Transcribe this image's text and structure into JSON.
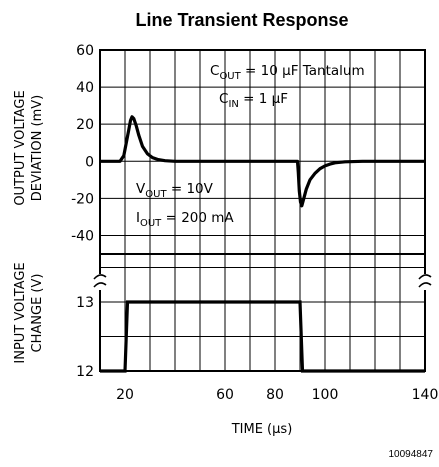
{
  "chart_data": [
    {
      "type": "line",
      "title": "Line Transient Response",
      "ylabel_lines": [
        "OUTPUT VOLTAGE",
        "DEVIATION (mV)"
      ],
      "ylim": [
        -50,
        60
      ],
      "yticks": [
        60,
        40,
        20,
        0,
        -20,
        -40
      ],
      "xlim": [
        10,
        140
      ],
      "grid": true,
      "annotations": [
        {
          "pre": "C",
          "sub": "OUT",
          "post": " = 10 ",
          "mu": "μ",
          "post2": "F Tantalum"
        },
        {
          "pre": "C",
          "sub": "IN",
          "post": " = 1 ",
          "mu": "μ",
          "post2": "F"
        },
        {
          "pre": "V",
          "sub": "OUT",
          "post": " = 10V"
        },
        {
          "pre": "I",
          "sub": "OUT",
          "post": " = 200 mA"
        }
      ],
      "series": [
        {
          "x": [
            10,
            18,
            19.5,
            20.5,
            21.5,
            22.2,
            22.8,
            23.5,
            24.5,
            25.5,
            27,
            29,
            31,
            33,
            36,
            40,
            50,
            70,
            89,
            89.3,
            89.7,
            90.2,
            90.7,
            91.5,
            92.5,
            94,
            96,
            98,
            100,
            102,
            104,
            108,
            115,
            140
          ],
          "y": [
            0,
            0,
            3,
            10,
            17,
            22,
            24,
            23,
            19,
            14,
            8,
            4,
            2,
            1,
            0.3,
            0,
            0,
            0,
            0,
            -6,
            -16,
            -22,
            -24,
            -20,
            -15,
            -10,
            -6.5,
            -4,
            -2.5,
            -1.5,
            -0.8,
            -0.3,
            0,
            0
          ]
        }
      ]
    },
    {
      "type": "line",
      "ylabel_lines": [
        "INPUT VOLTAGE",
        "CHANGE (V)"
      ],
      "yticks": [
        13,
        12
      ],
      "ylim": [
        12,
        14
      ],
      "xlim": [
        10,
        140
      ],
      "xticks": [
        20,
        60,
        80,
        100,
        140
      ],
      "xlabel_pre": "TIME (",
      "xlabel_mu": "μ",
      "xlabel_post": "s)",
      "grid": true,
      "series": [
        {
          "x": [
            10,
            20,
            21,
            90,
            91,
            140
          ],
          "y": [
            12,
            12,
            13,
            13,
            12,
            12
          ]
        }
      ]
    }
  ],
  "figure_id": "10094847"
}
